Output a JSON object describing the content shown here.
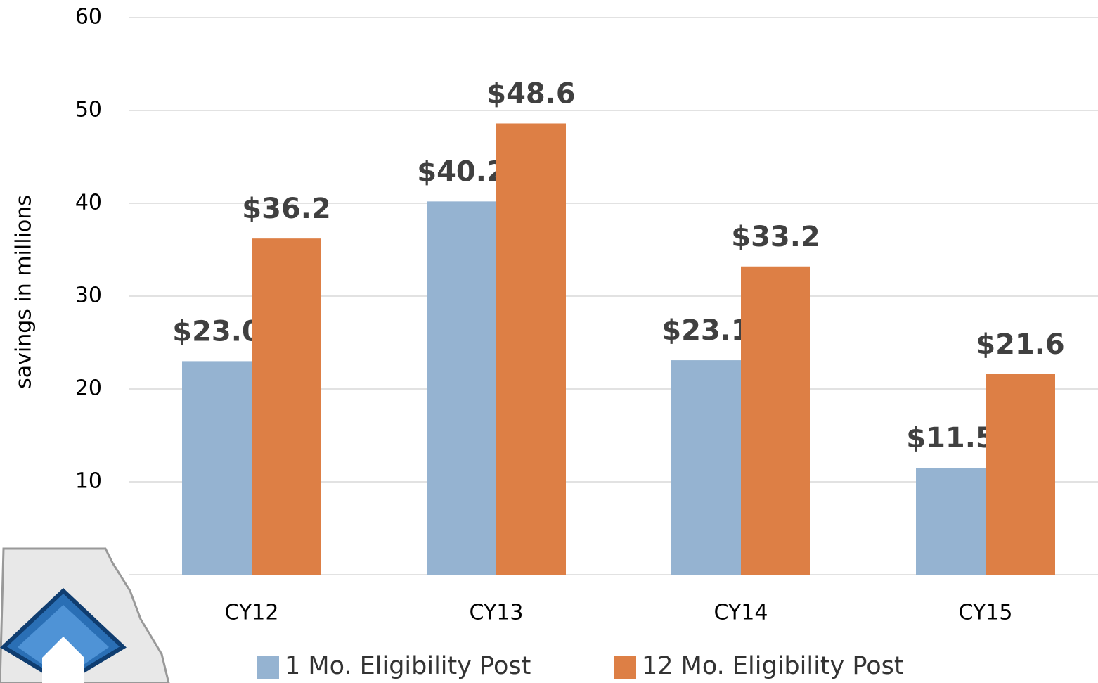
{
  "chart_data": {
    "type": "bar",
    "y_label": "savings in millions",
    "categories": [
      "CY12",
      "CY13",
      "CY14",
      "CY15"
    ],
    "series": [
      {
        "name": "1 Mo. Eligibility Post",
        "color": "#95b3d1",
        "values": [
          23.0,
          40.2,
          23.1,
          11.5
        ],
        "value_labels": [
          "$23.0",
          "$40.2",
          "$23.1",
          "$11.5"
        ]
      },
      {
        "name": "12 Mo. Eligibility Post",
        "color": "#dd7f45",
        "values": [
          36.2,
          48.6,
          33.2,
          21.6
        ],
        "value_labels": [
          "$36.2",
          "$48.6",
          "$33.2",
          "$21.6"
        ]
      }
    ],
    "ylim": [
      0,
      60
    ],
    "yticks": [
      10,
      20,
      30,
      40,
      50,
      60
    ],
    "grid": true,
    "legend": "bottom"
  }
}
